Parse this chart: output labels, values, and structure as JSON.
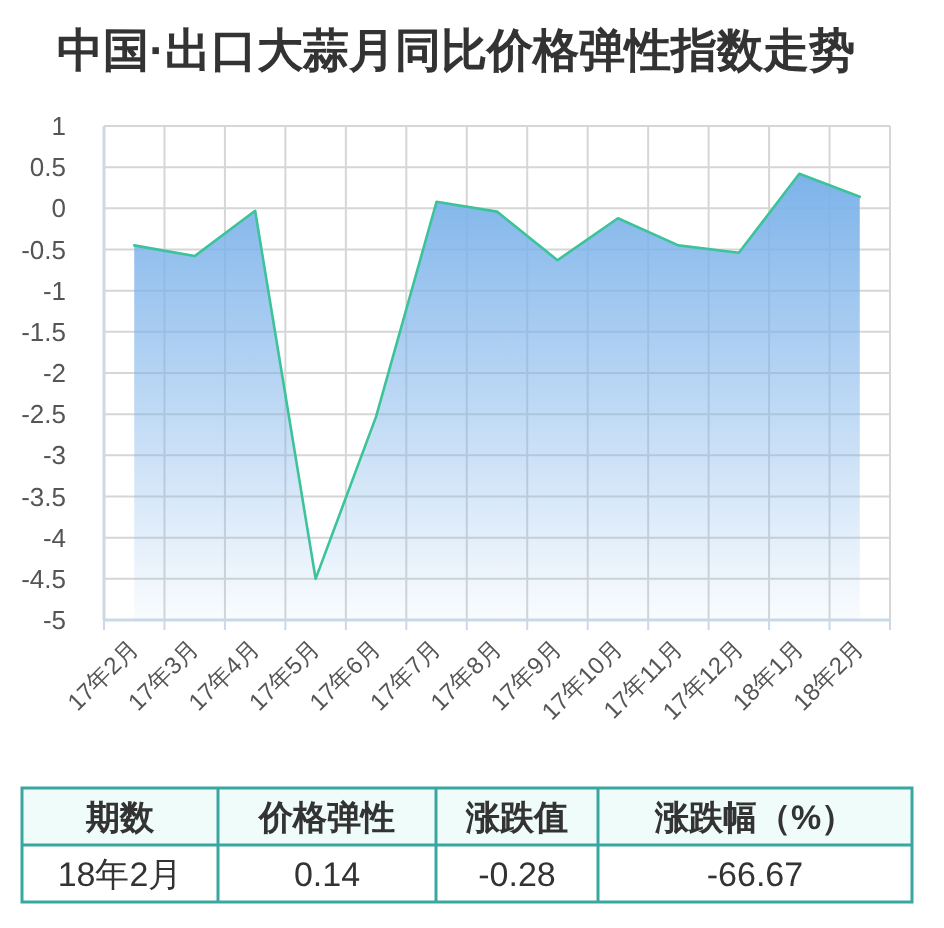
{
  "chart_data": [
    {
      "type": "line",
      "title": "中国·出口大蒜月同比价格弹性指数走势",
      "categories": [
        "17年2月",
        "17年3月",
        "17年4月",
        "17年5月",
        "17年6月",
        "17年7月",
        "17年8月",
        "17年9月",
        "17年10月",
        "17年11月",
        "17年12月",
        "18年1月",
        "18年2月"
      ],
      "series": [
        {
          "color": "#3cc39a",
          "values": [
            -0.45,
            -0.58,
            -0.03,
            -4.5,
            -2.53,
            0.08,
            -0.04,
            -0.63,
            -0.12,
            -0.45,
            -0.54,
            0.42,
            0.14
          ],
          "lower": [
            -5,
            -5,
            -5,
            -5,
            -5,
            -5,
            -5,
            -5,
            -5,
            -5,
            -5,
            -5,
            -5
          ],
          "upper": [
            -0.45,
            -0.58,
            -0.03,
            -4.5,
            -2.53,
            0.08,
            -0.04,
            -0.63,
            -0.12,
            -0.45,
            -0.54,
            0.42,
            0.14
          ]
        }
      ],
      "ylim": [
        -5,
        1
      ],
      "yticks": [
        1,
        0.5,
        0,
        -0.5,
        -1,
        -1.5,
        -2,
        -2.5,
        -3,
        -3.5,
        -4,
        -4.5,
        -5
      ],
      "grid": true
    },
    {
      "type": "other",
      "annotations": [
        "期数",
        "价格弹性",
        "涨跌值",
        "涨跌幅（%）",
        "18年2月",
        "0.14",
        "-0.28",
        "-66.67"
      ]
    }
  ]
}
